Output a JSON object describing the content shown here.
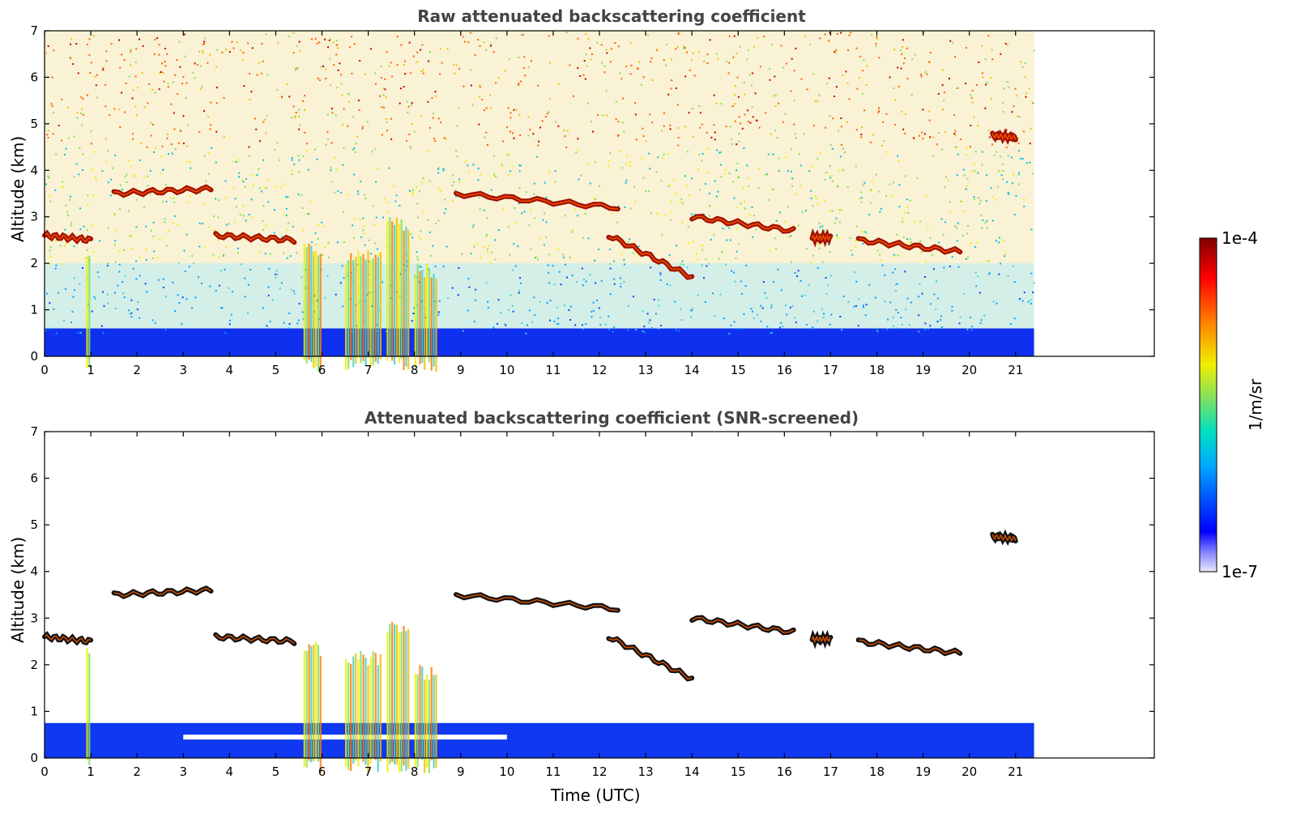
{
  "chart_data": [
    {
      "type": "heatmap",
      "title": "Raw attenuated backscattering coefficient",
      "xlabel": "",
      "ylabel": "Altitude (km)",
      "xlim": [
        0,
        24
      ],
      "ylim": [
        0,
        7
      ],
      "xticks": [
        0,
        1,
        2,
        3,
        4,
        5,
        6,
        7,
        8,
        9,
        10,
        11,
        12,
        13,
        14,
        15,
        16,
        17,
        18,
        19,
        20,
        21
      ],
      "yticks": [
        0,
        1,
        2,
        3,
        4,
        5,
        6,
        7
      ],
      "data_extent_x": [
        0,
        21.4
      ],
      "grid": false,
      "cloud_layers": [
        {
          "x": [
            0.0,
            1.0
          ],
          "y": [
            2.6,
            2.5
          ]
        },
        {
          "x": [
            1.5,
            3.6
          ],
          "y": [
            3.5,
            3.6
          ]
        },
        {
          "x": [
            3.7,
            5.4
          ],
          "y": [
            2.6,
            2.5
          ]
        },
        {
          "x": [
            8.9,
            12.4
          ],
          "y": [
            3.5,
            3.2
          ]
        },
        {
          "x": [
            12.2,
            14.0
          ],
          "y": [
            2.6,
            1.7
          ]
        },
        {
          "x": [
            14.0,
            16.2
          ],
          "y": [
            3.0,
            2.7
          ]
        },
        {
          "x": [
            16.6,
            17.0
          ],
          "y": [
            2.55,
            2.55
          ]
        },
        {
          "x": [
            17.6,
            19.8
          ],
          "y": [
            2.5,
            2.25
          ]
        },
        {
          "x": [
            20.5,
            21.0
          ],
          "y": [
            4.75,
            4.7
          ]
        }
      ]
    },
    {
      "type": "heatmap",
      "title": "Attenuated backscattering coefficient (SNR-screened)",
      "xlabel": "Time (UTC)",
      "ylabel": "Altitude (km)",
      "xlim": [
        0,
        24
      ],
      "ylim": [
        0,
        7
      ],
      "xticks": [
        0,
        1,
        2,
        3,
        4,
        5,
        6,
        7,
        8,
        9,
        10,
        11,
        12,
        13,
        14,
        15,
        16,
        17,
        18,
        19,
        20,
        21
      ],
      "yticks": [
        0,
        1,
        2,
        3,
        4,
        5,
        6,
        7
      ],
      "data_extent_x": [
        0,
        21.4
      ],
      "grid": false,
      "cloud_layers": [
        {
          "x": [
            0.0,
            1.0
          ],
          "y": [
            2.6,
            2.5
          ]
        },
        {
          "x": [
            1.5,
            3.6
          ],
          "y": [
            3.5,
            3.6
          ]
        },
        {
          "x": [
            3.7,
            5.4
          ],
          "y": [
            2.6,
            2.5
          ]
        },
        {
          "x": [
            8.9,
            12.4
          ],
          "y": [
            3.5,
            3.2
          ]
        },
        {
          "x": [
            12.2,
            14.0
          ],
          "y": [
            2.6,
            1.7
          ]
        },
        {
          "x": [
            14.0,
            16.2
          ],
          "y": [
            3.0,
            2.7
          ]
        },
        {
          "x": [
            16.6,
            17.0
          ],
          "y": [
            2.55,
            2.55
          ]
        },
        {
          "x": [
            17.6,
            19.8
          ],
          "y": [
            2.5,
            2.25
          ]
        },
        {
          "x": [
            20.5,
            21.0
          ],
          "y": [
            4.75,
            4.7
          ]
        }
      ]
    }
  ],
  "colorbar": {
    "max_label": "1e-4",
    "min_label": "1e-7",
    "unit": "1/m/sr",
    "scale": "log",
    "colormap": [
      "#e8e8f8",
      "#0000ff",
      "#00aaff",
      "#00e0c0",
      "#80e060",
      "#f0f000",
      "#ff8000",
      "#ff0000",
      "#800000"
    ]
  }
}
